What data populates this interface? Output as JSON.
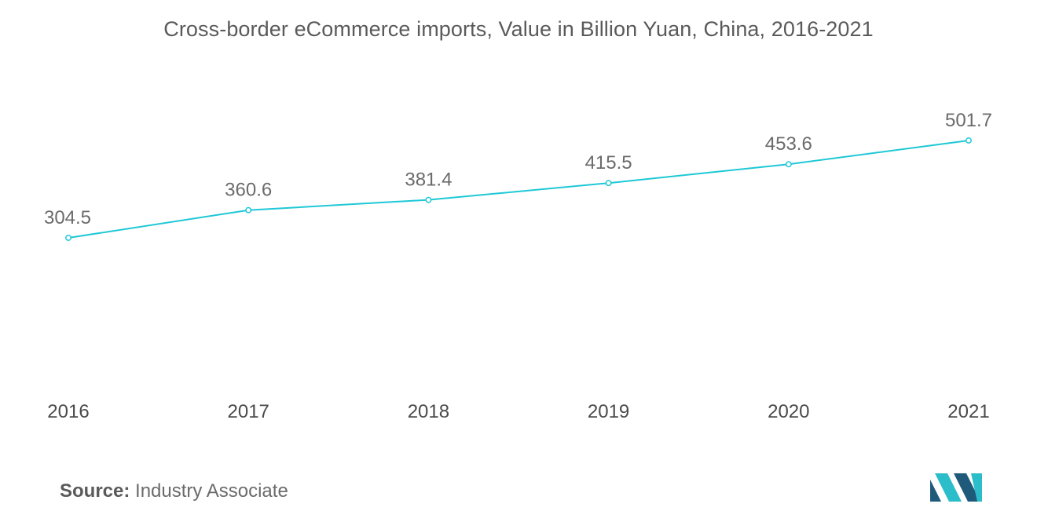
{
  "title": "Cross-border eCommerce imports, Value in Billion Yuan, China, 2016-2021",
  "source": {
    "label": "Source:",
    "text": "Industry Associate"
  },
  "colors": {
    "line": "#1ec8d6",
    "logo_dark": "#1f5a7a",
    "logo_teal": "#2bbdc9"
  },
  "chart_data": {
    "type": "line",
    "title": "Cross-border eCommerce imports, Value in Billion Yuan, China, 2016-2021",
    "xlabel": "",
    "ylabel": "",
    "categories": [
      "2016",
      "2017",
      "2018",
      "2019",
      "2020",
      "2021"
    ],
    "series": [
      {
        "values": [
          304.5,
          360.6,
          381.4,
          415.5,
          453.6,
          501.7
        ]
      }
    ],
    "data_labels": [
      "304.5",
      "360.6",
      "381.4",
      "415.5",
      "453.6",
      "501.7"
    ],
    "grid": false,
    "legend": "none"
  }
}
